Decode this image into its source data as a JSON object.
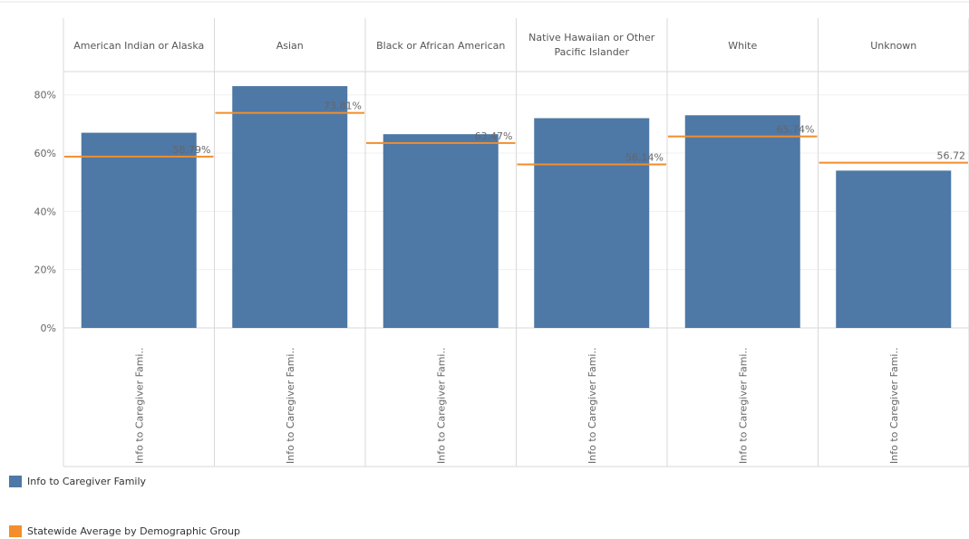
{
  "chart_data": {
    "type": "bar",
    "categories": [
      [
        "American Indian or Alaska"
      ],
      [
        "Asian"
      ],
      [
        "Black or African American"
      ],
      [
        "Native Hawaiian or Other",
        "Pacific Islander"
      ],
      [
        "White"
      ],
      [
        "Unknown"
      ]
    ],
    "x_tick_label": "Info to Caregiver Fami..",
    "y_ticks": [
      "0%",
      "20%",
      "40%",
      "60%",
      "80%"
    ],
    "y_tick_values": [
      0,
      20,
      40,
      60,
      80
    ],
    "ylim": [
      0,
      88
    ],
    "series": [
      {
        "name": "Info to Caregiver Family",
        "color": "#4e78a6",
        "values": [
          67,
          83,
          66.5,
          72,
          73,
          54
        ]
      },
      {
        "name": "Statewide Average by Demographic Group",
        "color": "#f28e2b",
        "values": [
          58.79,
          73.81,
          63.47,
          56.14,
          65.74,
          56.72
        ],
        "labels": [
          "58.79%",
          "73.81%",
          "63.47%",
          "56.14%",
          "65.74%",
          "56.72"
        ]
      }
    ],
    "grid": true
  },
  "legend": {
    "items": [
      {
        "label": "Info to Caregiver Family",
        "color": "#4e78a6"
      },
      {
        "label": "Statewide Average by Demographic Group",
        "color": "#f28e2b"
      }
    ]
  }
}
